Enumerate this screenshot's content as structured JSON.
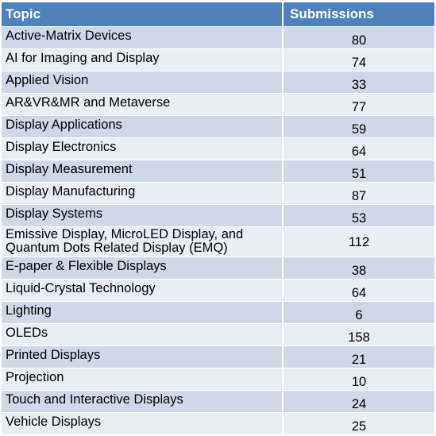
{
  "table": {
    "headers": {
      "topic": "Topic",
      "submissions": "Submissions"
    },
    "rows": [
      {
        "topic": "Active-Matrix Devices",
        "submissions": "80"
      },
      {
        "topic": "AI for Imaging and Display",
        "submissions": "74"
      },
      {
        "topic": "Applied Vision",
        "submissions": "33"
      },
      {
        "topic": "AR&VR&MR and Metaverse",
        "submissions": "77"
      },
      {
        "topic": "Display Applications",
        "submissions": "59"
      },
      {
        "topic": "Display Electronics",
        "submissions": "64"
      },
      {
        "topic": "Display Measurement",
        "submissions": "51"
      },
      {
        "topic": "Display Manufacturing",
        "submissions": "87"
      },
      {
        "topic": "Display Systems",
        "submissions": "53"
      },
      {
        "topic": "Emissive Display, MicroLED  Display, and Quantum Dots Related Display (EMQ)",
        "submissions": "112"
      },
      {
        "topic": "E-paper & Flexible Displays",
        "submissions": "38"
      },
      {
        "topic": "Liquid-Crystal Technology",
        "submissions": "64"
      },
      {
        "topic": "Lighting",
        "submissions": "6"
      },
      {
        "topic": "OLEDs",
        "submissions": "158"
      },
      {
        "topic": "Printed Displays",
        "submissions": "21"
      },
      {
        "topic": "Projection",
        "submissions": "10"
      },
      {
        "topic": "Touch and Interactive Displays",
        "submissions": "24"
      },
      {
        "topic": "Vehicle Displays",
        "submissions": "25"
      }
    ]
  },
  "colors": {
    "header_background": "#4f81bd",
    "header_text": "#ffffff",
    "row_shade_dark": "#d0d8e8",
    "row_shade_light": "#e9edf4"
  }
}
